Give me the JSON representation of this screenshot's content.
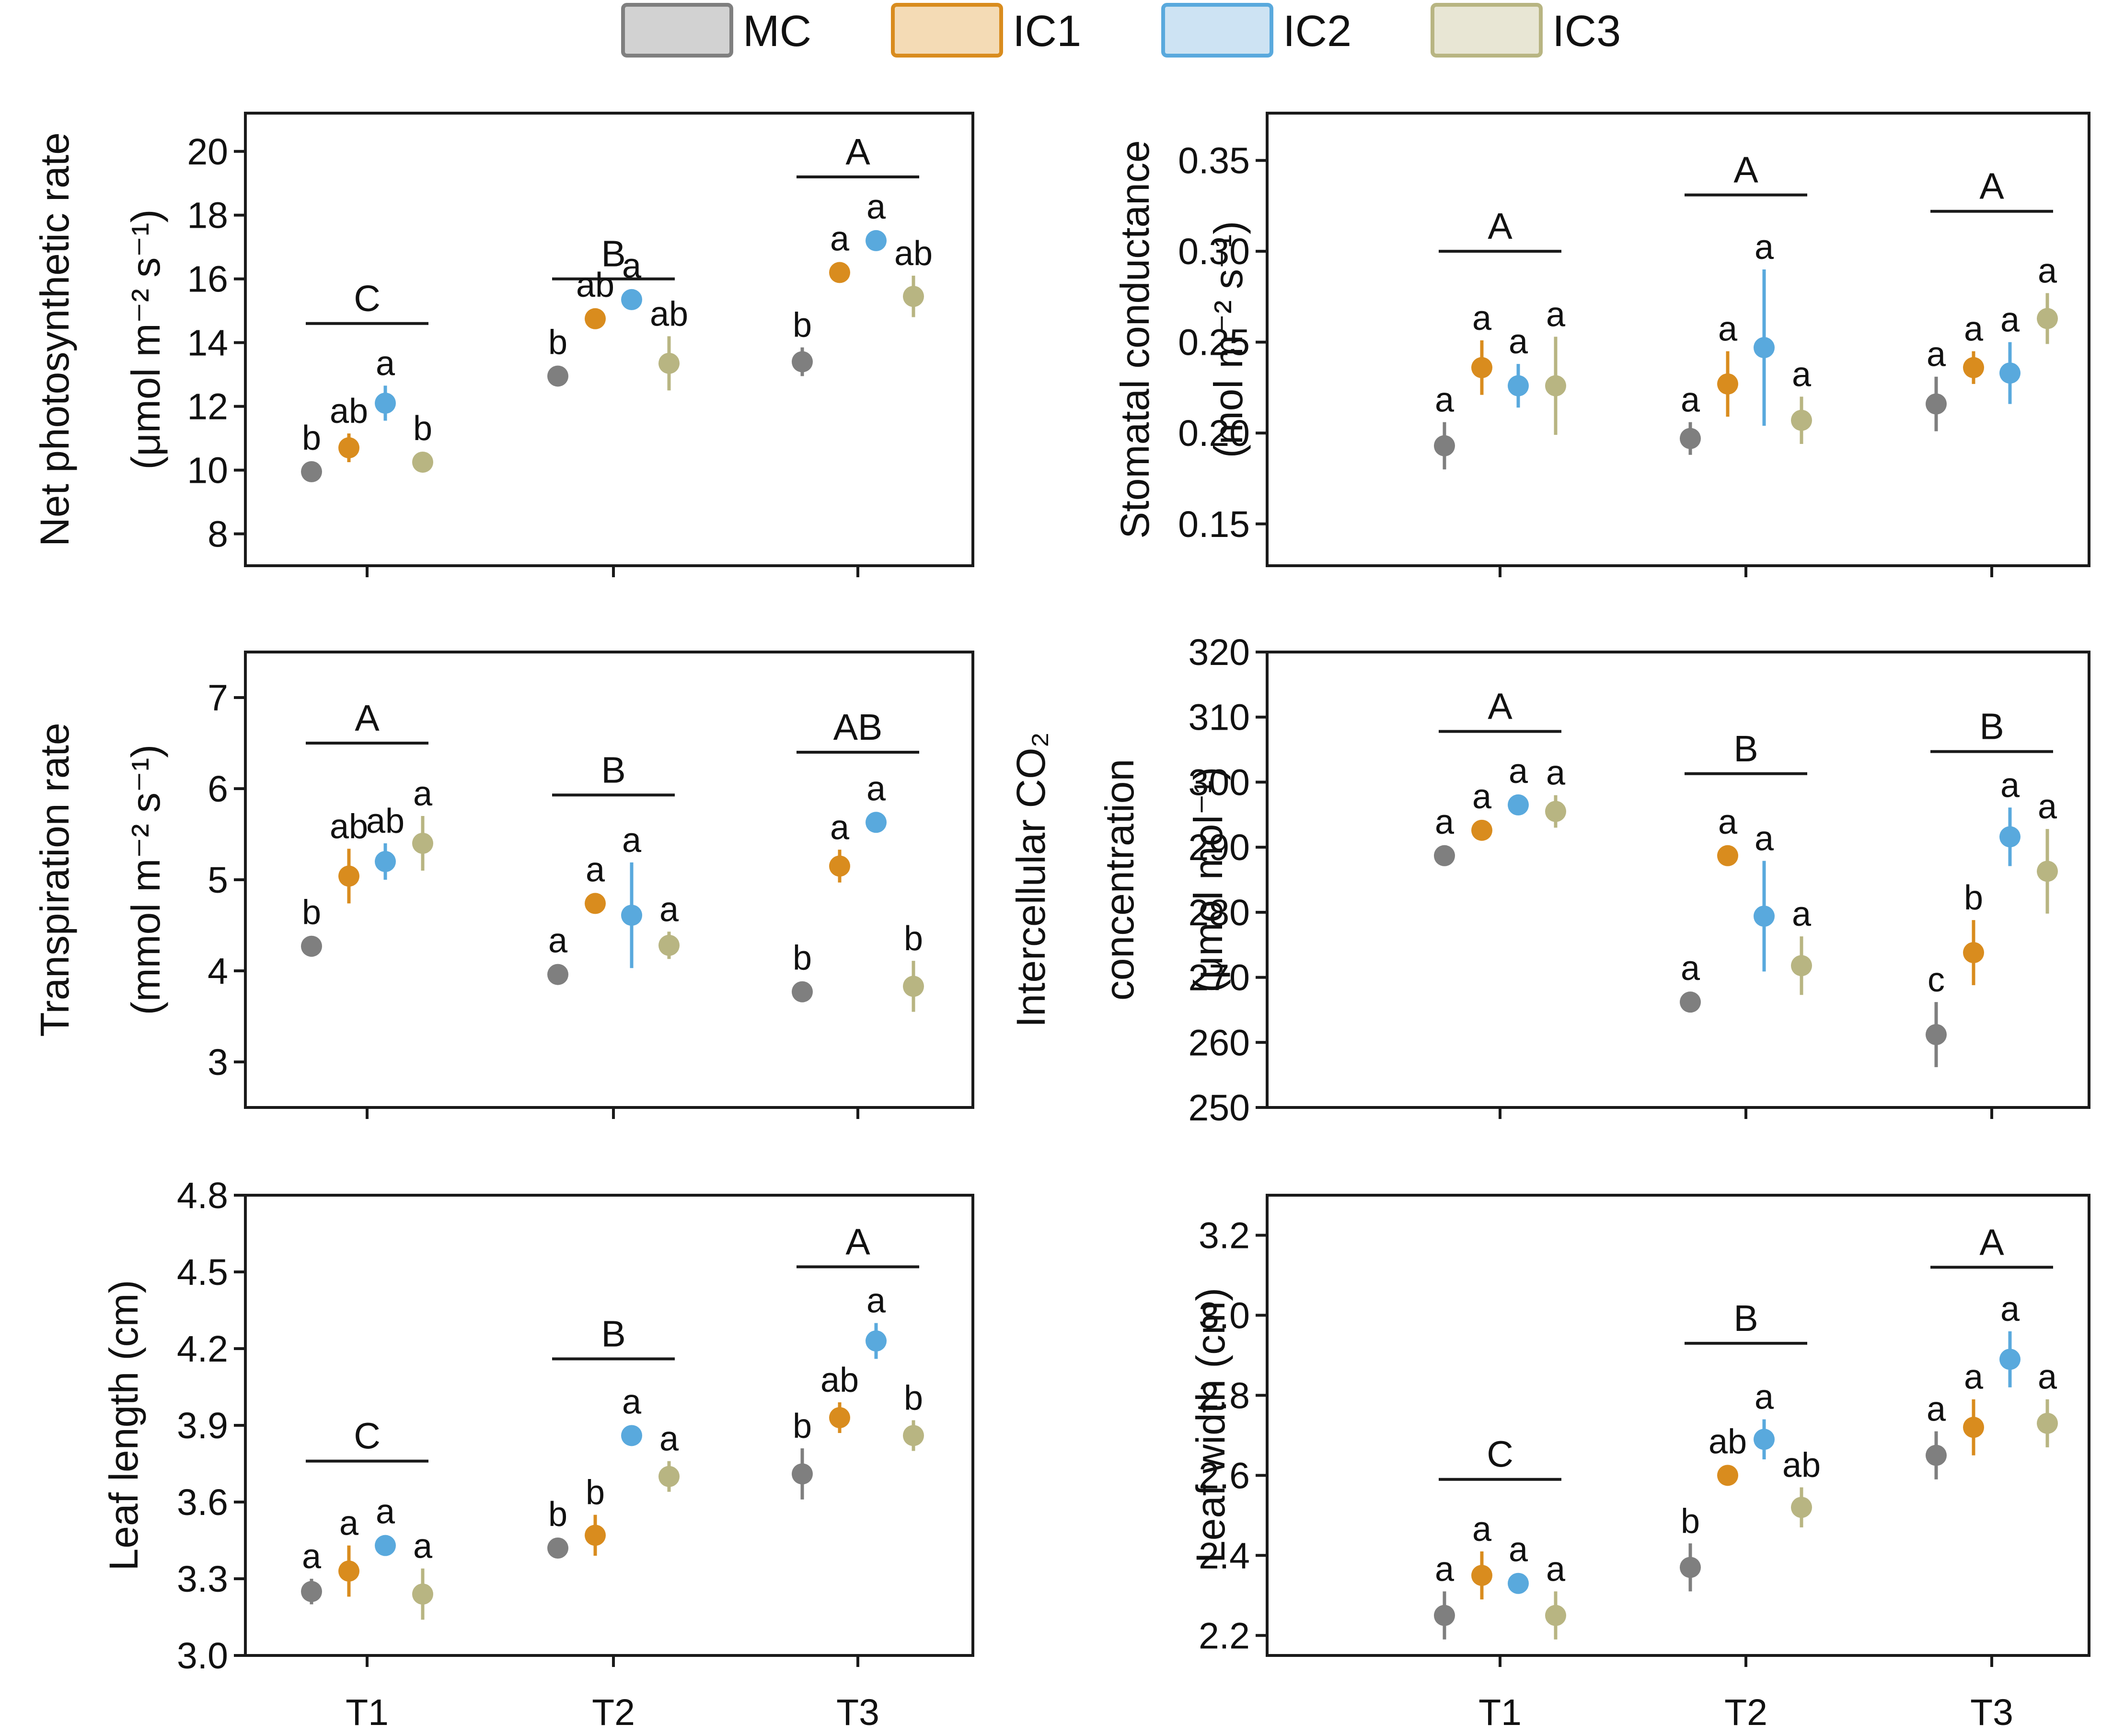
{
  "legend": [
    {
      "name": "MC",
      "color": "#7f7f7f",
      "fill": "#d2d2d2"
    },
    {
      "name": "IC1",
      "color": "#d98c1e",
      "fill": "#f4dbb5"
    },
    {
      "name": "IC2",
      "color": "#59a9dd",
      "fill": "#cde3f3"
    },
    {
      "name": "IC3",
      "color": "#b8b582",
      "fill": "#e8e6d4"
    }
  ],
  "chart_data": [
    {
      "type": "scatter",
      "id": "net-photosynthetic-rate",
      "ylabel_lines": [
        "Net photosynthetic rate",
        "(μmol m⁻² s⁻¹)"
      ],
      "categories": [
        "T1",
        "T2",
        "T3"
      ],
      "ylim": [
        7.0,
        21.2
      ],
      "yticks": [
        8,
        10,
        12,
        14,
        16,
        18,
        20
      ],
      "tick_labels": [
        "8",
        "10",
        "12",
        "14",
        "16",
        "18",
        "20"
      ],
      "series": [
        {
          "name": "MC",
          "values": [
            9.95,
            12.95,
            13.4
          ],
          "errors": [
            0.15,
            0.25,
            0.45
          ],
          "letters": [
            "b",
            "b",
            "b"
          ]
        },
        {
          "name": "IC1",
          "values": [
            10.7,
            14.75,
            16.2
          ],
          "errors": [
            0.45,
            0.2,
            0.3
          ],
          "letters": [
            "ab",
            "ab",
            "a"
          ]
        },
        {
          "name": "IC2",
          "values": [
            12.1,
            15.35,
            17.2
          ],
          "errors": [
            0.55,
            0.15,
            0.3
          ],
          "letters": [
            "a",
            "a",
            "a"
          ]
        },
        {
          "name": "IC3",
          "values": [
            10.25,
            13.35,
            15.45
          ],
          "errors": [
            0.2,
            0.85,
            0.65
          ],
          "letters": [
            "b",
            "ab",
            "ab"
          ]
        }
      ],
      "group_letters": [
        "C",
        "B",
        "A"
      ],
      "group_letter_values": [
        14.6,
        16.0,
        19.2
      ]
    },
    {
      "type": "scatter",
      "id": "stomatal-conductance",
      "ylabel_lines": [
        "Stomatal conductance",
        "(mol m⁻² s⁻¹)"
      ],
      "categories": [
        "T1",
        "T2",
        "T3"
      ],
      "ylim": [
        0.127,
        0.376
      ],
      "yticks": [
        0.15,
        0.2,
        0.25,
        0.3,
        0.35
      ],
      "tick_labels": [
        "0.15",
        "0.20",
        "0.25",
        "0.30",
        "0.35"
      ],
      "series": [
        {
          "name": "MC",
          "values": [
            0.193,
            0.197,
            0.216
          ],
          "errors": [
            0.013,
            0.009,
            0.015
          ],
          "letters": [
            "a",
            "a",
            "a"
          ]
        },
        {
          "name": "IC1",
          "values": [
            0.236,
            0.227,
            0.236
          ],
          "errors": [
            0.015,
            0.018,
            0.009
          ],
          "letters": [
            "a",
            "a",
            "a"
          ]
        },
        {
          "name": "IC2",
          "values": [
            0.226,
            0.247,
            0.233
          ],
          "errors": [
            0.012,
            0.043,
            0.017
          ],
          "letters": [
            "a",
            "a",
            "a"
          ]
        },
        {
          "name": "IC3",
          "values": [
            0.226,
            0.207,
            0.263
          ],
          "errors": [
            0.027,
            0.013,
            0.014
          ],
          "letters": [
            "a",
            "a",
            "a"
          ]
        }
      ],
      "group_letters": [
        "A",
        "A",
        "A"
      ],
      "group_letter_values": [
        0.3,
        0.331,
        0.322
      ]
    },
    {
      "type": "scatter",
      "id": "transpiration-rate",
      "ylabel_lines": [
        "Transpiration rate",
        "(mmol m⁻² s⁻¹)"
      ],
      "categories": [
        "T1",
        "T2",
        "T3"
      ],
      "ylim": [
        2.5,
        7.5
      ],
      "yticks": [
        3,
        4,
        5,
        6,
        7
      ],
      "tick_labels": [
        "3",
        "4",
        "5",
        "6",
        "7"
      ],
      "series": [
        {
          "name": "MC",
          "values": [
            4.27,
            3.96,
            3.77
          ],
          "errors": [
            0.08,
            0.08,
            0.08
          ],
          "letters": [
            "b",
            "a",
            "b"
          ]
        },
        {
          "name": "IC1",
          "values": [
            5.04,
            4.74,
            5.15
          ],
          "errors": [
            0.3,
            0.08,
            0.18
          ],
          "letters": [
            "ab",
            "a",
            "a"
          ]
        },
        {
          "name": "IC2",
          "values": [
            5.2,
            4.61,
            5.63
          ],
          "errors": [
            0.2,
            0.58,
            0.08
          ],
          "letters": [
            "ab",
            "a",
            "a"
          ]
        },
        {
          "name": "IC3",
          "values": [
            5.4,
            4.28,
            3.83
          ],
          "errors": [
            0.3,
            0.15,
            0.28
          ],
          "letters": [
            "a",
            "a",
            "b"
          ]
        }
      ],
      "group_letters": [
        "A",
        "B",
        "AB"
      ],
      "group_letter_values": [
        6.5,
        5.93,
        6.4
      ]
    },
    {
      "type": "scatter",
      "id": "intercellular-co2",
      "ylabel_lines": [
        "Intercellular CO₂",
        "concentration",
        "(μmol mol⁻¹)"
      ],
      "categories": [
        "T1",
        "T2",
        "T3"
      ],
      "ylim": [
        250,
        320
      ],
      "yticks": [
        250,
        260,
        270,
        280,
        290,
        300,
        310,
        320
      ],
      "tick_labels": [
        "250",
        "260",
        "270",
        "280",
        "290",
        "300",
        "310",
        "320"
      ],
      "series": [
        {
          "name": "MC",
          "values": [
            288.7,
            266.2,
            261.2
          ],
          "errors": [
            1.5,
            1.0,
            5.0
          ],
          "letters": [
            "a",
            "a",
            "c"
          ]
        },
        {
          "name": "IC1",
          "values": [
            292.6,
            288.7,
            273.8
          ],
          "errors": [
            1.5,
            1.5,
            5.0
          ],
          "letters": [
            "a",
            "a",
            "b"
          ]
        },
        {
          "name": "IC2",
          "values": [
            296.5,
            279.4,
            291.6
          ],
          "errors": [
            1.5,
            8.5,
            4.5
          ],
          "letters": [
            "a",
            "a",
            "a"
          ]
        },
        {
          "name": "IC3",
          "values": [
            295.5,
            271.8,
            286.3
          ],
          "errors": [
            2.5,
            4.5,
            6.5
          ],
          "letters": [
            "a",
            "a",
            "a"
          ]
        }
      ],
      "group_letters": [
        "A",
        "B",
        "B"
      ],
      "group_letter_values": [
        307.8,
        301.3,
        304.7
      ]
    },
    {
      "type": "scatter",
      "id": "leaf-length",
      "ylabel_lines": [
        "Leaf length (cm)"
      ],
      "categories": [
        "T1",
        "T2",
        "T3"
      ],
      "ylim": [
        3.0,
        4.8
      ],
      "yticks": [
        3.0,
        3.3,
        3.6,
        3.9,
        4.2,
        4.5,
        4.8
      ],
      "tick_labels": [
        "3.0",
        "3.3",
        "3.6",
        "3.9",
        "4.2",
        "4.5",
        "4.8"
      ],
      "series": [
        {
          "name": "MC",
          "values": [
            3.25,
            3.42,
            3.71
          ],
          "errors": [
            0.05,
            0.03,
            0.1
          ],
          "letters": [
            "a",
            "b",
            "b"
          ]
        },
        {
          "name": "IC1",
          "values": [
            3.33,
            3.47,
            3.93
          ],
          "errors": [
            0.1,
            0.08,
            0.06
          ],
          "letters": [
            "a",
            "b",
            "ab"
          ]
        },
        {
          "name": "IC2",
          "values": [
            3.43,
            3.86,
            4.23
          ],
          "errors": [
            0.03,
            0.03,
            0.07
          ],
          "letters": [
            "a",
            "a",
            "a"
          ]
        },
        {
          "name": "IC3",
          "values": [
            3.24,
            3.7,
            3.86
          ],
          "errors": [
            0.1,
            0.06,
            0.06
          ],
          "letters": [
            "a",
            "a",
            "b"
          ]
        }
      ],
      "group_letters": [
        "C",
        "B",
        "A"
      ],
      "group_letter_values": [
        3.76,
        4.16,
        4.52
      ]
    },
    {
      "type": "scatter",
      "id": "leaf-width",
      "ylabel_lines": [
        "Leaf width (cm)"
      ],
      "categories": [
        "T1",
        "T2",
        "T3"
      ],
      "ylim": [
        2.15,
        3.3
      ],
      "yticks": [
        2.2,
        2.4,
        2.6,
        2.8,
        3.0,
        3.2
      ],
      "tick_labels": [
        "2.2",
        "2.4",
        "2.6",
        "2.8",
        "3.0",
        "3.2"
      ],
      "series": [
        {
          "name": "MC",
          "values": [
            2.25,
            2.37,
            2.65
          ],
          "errors": [
            0.06,
            0.06,
            0.06
          ],
          "letters": [
            "a",
            "b",
            "a"
          ]
        },
        {
          "name": "IC1",
          "values": [
            2.35,
            2.6,
            2.72
          ],
          "errors": [
            0.06,
            0.02,
            0.07
          ],
          "letters": [
            "a",
            "ab",
            "a"
          ]
        },
        {
          "name": "IC2",
          "values": [
            2.33,
            2.69,
            2.89
          ],
          "errors": [
            0.02,
            0.05,
            0.07
          ],
          "letters": [
            "a",
            "a",
            "a"
          ]
        },
        {
          "name": "IC3",
          "values": [
            2.25,
            2.52,
            2.73
          ],
          "errors": [
            0.06,
            0.05,
            0.06
          ],
          "letters": [
            "a",
            "ab",
            "a"
          ]
        }
      ],
      "group_letters": [
        "C",
        "B",
        "A"
      ],
      "group_letter_values": [
        2.59,
        2.93,
        3.12
      ]
    }
  ]
}
